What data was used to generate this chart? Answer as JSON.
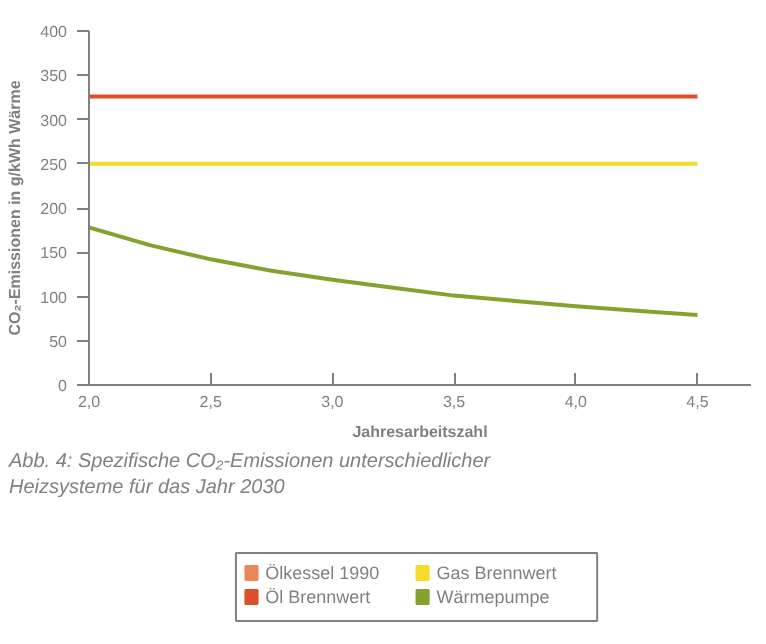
{
  "chart_data": {
    "type": "line",
    "x": [
      2.0,
      2.25,
      2.5,
      2.75,
      3.0,
      3.25,
      3.5,
      3.75,
      4.0,
      4.25,
      4.5
    ],
    "series": [
      {
        "name": "Ölkessel 1990",
        "color": "#e8875a",
        "values": [
          null,
          null,
          null,
          null,
          null,
          null,
          null,
          null,
          null,
          null,
          null
        ]
      },
      {
        "name": "Öl Brennwert",
        "color": "#d9502a",
        "values": [
          326,
          326,
          326,
          326,
          326,
          326,
          326,
          326,
          326,
          326,
          326
        ]
      },
      {
        "name": "Gas Brennwert",
        "color": "#f5dc2a",
        "values": [
          250,
          250,
          250,
          250,
          250,
          250,
          250,
          250,
          250,
          250,
          250
        ]
      },
      {
        "name": "Wärmepumpe",
        "color": "#86a22e",
        "values": [
          178,
          158,
          142,
          129,
          119,
          110,
          101,
          95,
          89,
          84,
          79
        ]
      }
    ],
    "xlabel": "Jahresarbeitszahl",
    "ylabel": "CO₂-Emissionen in g/kWh Wärme",
    "xlim": [
      2.0,
      4.72
    ],
    "ylim": [
      0,
      400
    ],
    "xticks": [
      {
        "value": 2.0,
        "label": "2,0"
      },
      {
        "value": 2.5,
        "label": "2,5"
      },
      {
        "value": 3.0,
        "label": "3,0"
      },
      {
        "value": 3.5,
        "label": "3,5"
      },
      {
        "value": 4.0,
        "label": "4,0"
      },
      {
        "value": 4.5,
        "label": "4,5"
      }
    ],
    "yticks": [
      0,
      50,
      100,
      150,
      200,
      250,
      300,
      350,
      400
    ],
    "annotations": [
      "Abb. 4: Spezifische CO₂-Emissionen unterschiedlicher Heizsysteme für das Jahr 2030"
    ],
    "legend": "bottom",
    "grid": false
  }
}
